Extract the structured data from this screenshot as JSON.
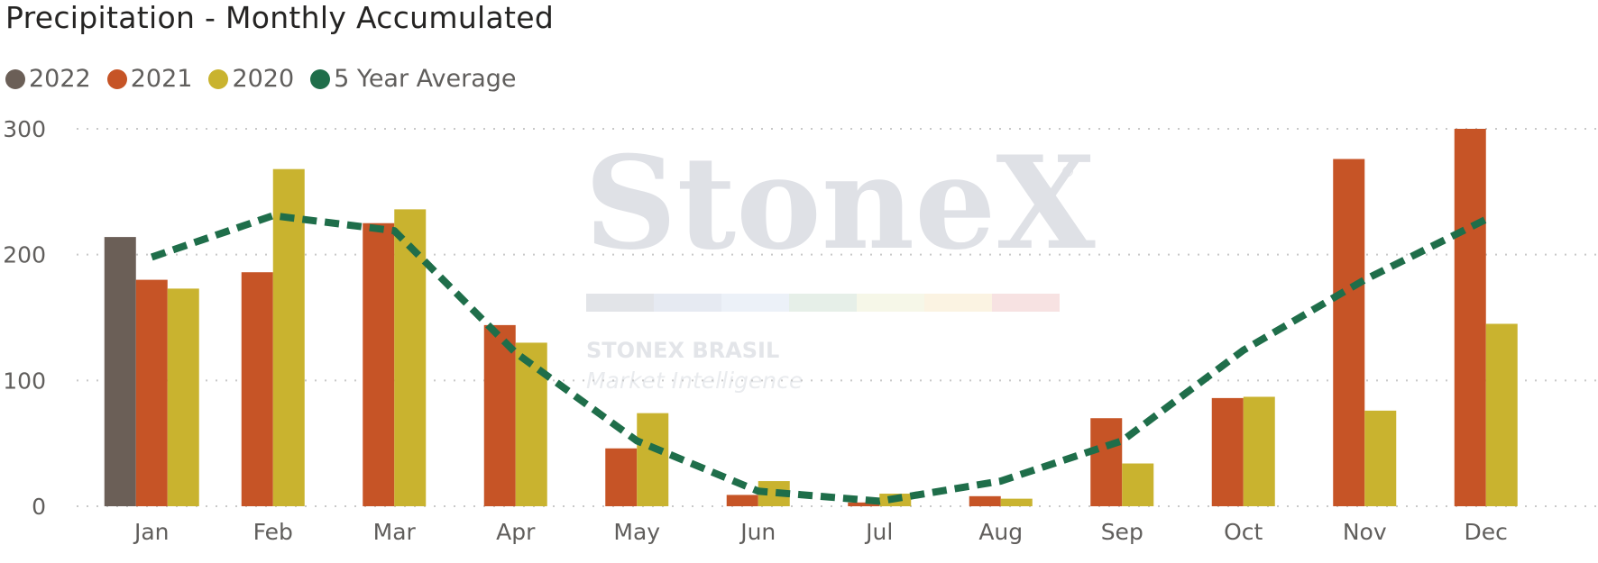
{
  "chart_data": {
    "type": "bar",
    "title": "Precipitation - Monthly Accumulated",
    "categories": [
      "Jan",
      "Feb",
      "Mar",
      "Apr",
      "May",
      "Jun",
      "Jul",
      "Aug",
      "Sep",
      "Oct",
      "Nov",
      "Dec"
    ],
    "series": [
      {
        "name": "2022",
        "type": "bar",
        "color": "#6b5f57",
        "values": [
          214,
          null,
          null,
          null,
          null,
          null,
          null,
          null,
          null,
          null,
          null,
          null
        ]
      },
      {
        "name": "2021",
        "type": "bar",
        "color": "#c65426",
        "values": [
          180,
          186,
          225,
          144,
          46,
          9,
          3,
          8,
          70,
          86,
          276,
          300
        ]
      },
      {
        "name": "2020",
        "type": "bar",
        "color": "#c9b32f",
        "values": [
          173,
          268,
          236,
          130,
          74,
          20,
          10,
          6,
          34,
          87,
          76,
          145
        ]
      },
      {
        "name": "5 Year Average",
        "type": "line",
        "color": "#1f6e4a",
        "values": [
          198,
          231,
          219,
          122,
          52,
          12,
          4,
          20,
          52,
          124,
          180,
          228
        ]
      }
    ],
    "ylim": [
      0,
      300
    ],
    "yticks": [
      0,
      100,
      200,
      300
    ],
    "grid": true,
    "legend_position": "top-left",
    "watermark": {
      "brand": "StoneX",
      "line1": "STONEX BRASIL",
      "line2": "Market Intelligence",
      "registered": "®"
    }
  }
}
